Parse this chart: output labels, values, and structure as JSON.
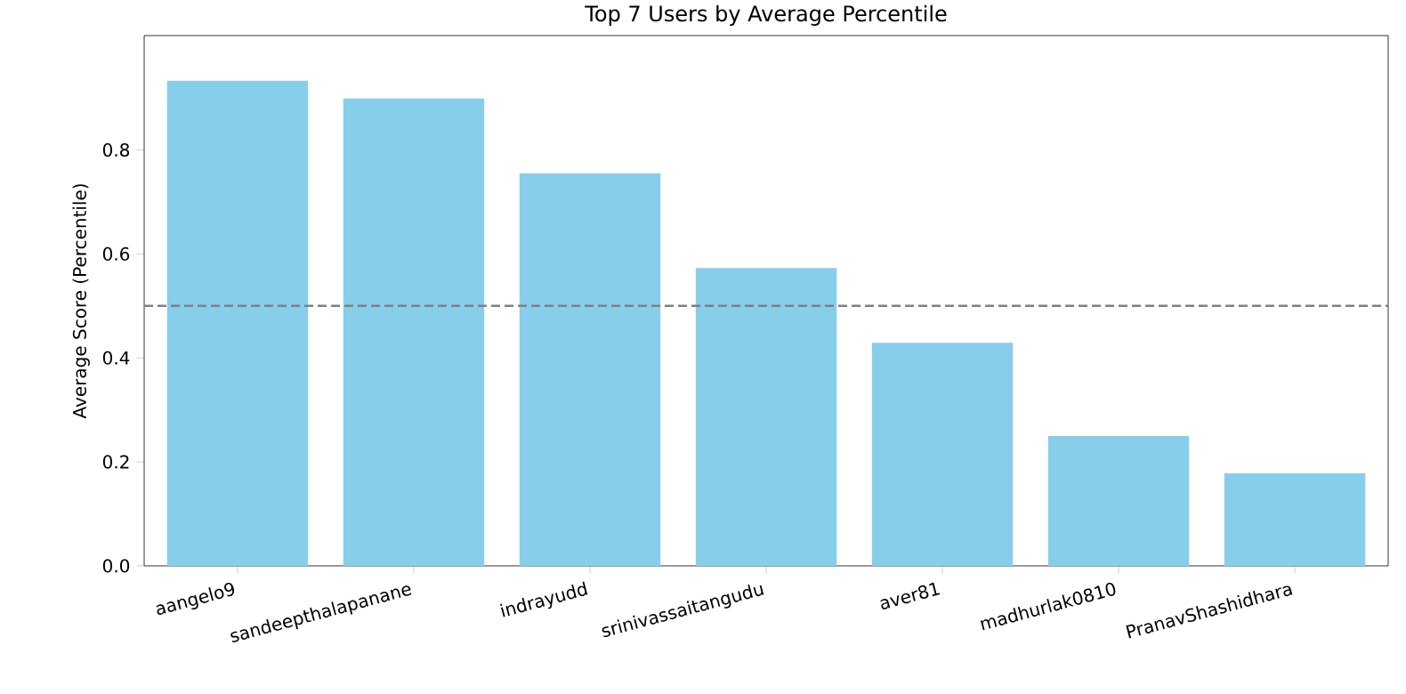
{
  "chart_data": {
    "type": "bar",
    "title": "Top 7 Users by Average Percentile",
    "ylabel": "Average Score (Percentile)",
    "categories": [
      "aangelo9",
      "sandeepthalapanane",
      "indrayudd",
      "srinivassaitangudu",
      "aver81",
      "madhurlak0810",
      "PranavShashidhara"
    ],
    "values": [
      0.933,
      0.899,
      0.755,
      0.573,
      0.429,
      0.25,
      0.178
    ],
    "color": "#87ceeb",
    "ylim": [
      0,
      1.02
    ],
    "yticks": [
      {
        "value": 0,
        "label": "0.0"
      },
      0.2,
      0.4,
      0.6,
      0.8
    ],
    "ref_lines": [
      {
        "axis": "y",
        "value": 0.5,
        "color": "#808080",
        "line_style": "dashed"
      }
    ]
  }
}
